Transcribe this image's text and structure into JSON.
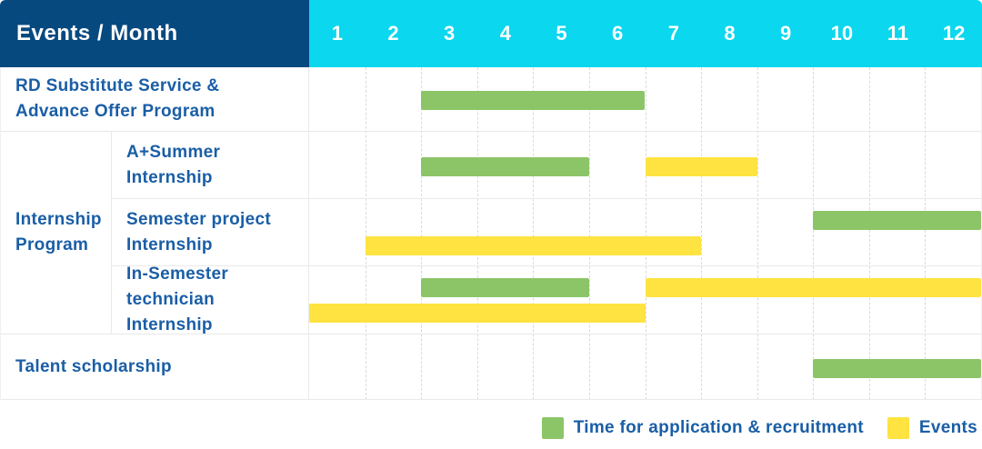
{
  "header": {
    "title": "Events / Month",
    "months": [
      "1",
      "2",
      "3",
      "4",
      "5",
      "6",
      "7",
      "8",
      "9",
      "10",
      "11",
      "12"
    ]
  },
  "group_label": "Internship\nProgram",
  "rows": [
    {
      "label": "RD Substitute Service &\nAdvance Offer Program",
      "in_group": false,
      "bars": [
        {
          "type": "recruitment",
          "track": "single",
          "start_month": 3,
          "end_month": 6
        }
      ]
    },
    {
      "label": "A+Summer\nInternship",
      "in_group": true,
      "bars": [
        {
          "type": "recruitment",
          "track": "single",
          "start_month": 3,
          "end_month": 5
        },
        {
          "type": "events",
          "track": "single",
          "start_month": 7,
          "end_month": 8
        }
      ]
    },
    {
      "label": "Semester project\nInternship",
      "in_group": true,
      "bars": [
        {
          "type": "recruitment",
          "track": "upper",
          "start_month": 10,
          "end_month": 12
        },
        {
          "type": "events",
          "track": "lower",
          "start_month": 2,
          "end_month": 7
        }
      ]
    },
    {
      "label": "In-Semester\ntechnician Internship",
      "in_group": true,
      "bars": [
        {
          "type": "recruitment",
          "track": "upper",
          "start_month": 3,
          "end_month": 5
        },
        {
          "type": "events",
          "track": "upper",
          "start_month": 7,
          "end_month": 12
        },
        {
          "type": "events",
          "track": "lower",
          "start_month": 1,
          "end_month": 6
        }
      ]
    },
    {
      "label": "Talent scholarship",
      "in_group": false,
      "bars": [
        {
          "type": "recruitment",
          "track": "single",
          "start_month": 10,
          "end_month": 12
        }
      ]
    }
  ],
  "legend": [
    {
      "type": "recruitment",
      "label": "Time for application & recruitment"
    },
    {
      "type": "events",
      "label": "Events"
    }
  ],
  "colors": {
    "header_bg": "#06497F",
    "month_header_bg": "#0BD7EE",
    "recruitment": "#8CC567",
    "events": "#FFE340",
    "label_text": "#1A5EA6"
  },
  "chart_data": {
    "type": "bar",
    "subtype": "gantt",
    "title": "Events / Month",
    "xlabel": "Month",
    "x_ticks": [
      1,
      2,
      3,
      4,
      5,
      6,
      7,
      8,
      9,
      10,
      11,
      12
    ],
    "xlim": [
      1,
      12
    ],
    "grid": true,
    "legend_position": "bottom-right",
    "legend": [
      "Time for application & recruitment",
      "Events"
    ],
    "tasks": [
      {
        "row": "RD Substitute Service & Advance Offer Program",
        "bars": [
          {
            "kind": "Time for application & recruitment",
            "months": [
              3,
              6
            ]
          }
        ]
      },
      {
        "row": "Internship Program - A+Summer Internship",
        "bars": [
          {
            "kind": "Time for application & recruitment",
            "months": [
              3,
              5
            ]
          },
          {
            "kind": "Events",
            "months": [
              7,
              8
            ]
          }
        ]
      },
      {
        "row": "Internship Program - Semester project Internship",
        "bars": [
          {
            "kind": "Time for application & recruitment",
            "months": [
              10,
              12
            ]
          },
          {
            "kind": "Events",
            "months": [
              2,
              7
            ]
          }
        ]
      },
      {
        "row": "Internship Program - In-Semester technician Internship",
        "bars": [
          {
            "kind": "Time for application & recruitment",
            "months": [
              3,
              5
            ]
          },
          {
            "kind": "Events",
            "months": [
              7,
              12
            ]
          },
          {
            "kind": "Events",
            "months": [
              1,
              6
            ]
          }
        ]
      },
      {
        "row": "Talent scholarship",
        "bars": [
          {
            "kind": "Time for application & recruitment",
            "months": [
              10,
              12
            ]
          }
        ]
      }
    ]
  }
}
